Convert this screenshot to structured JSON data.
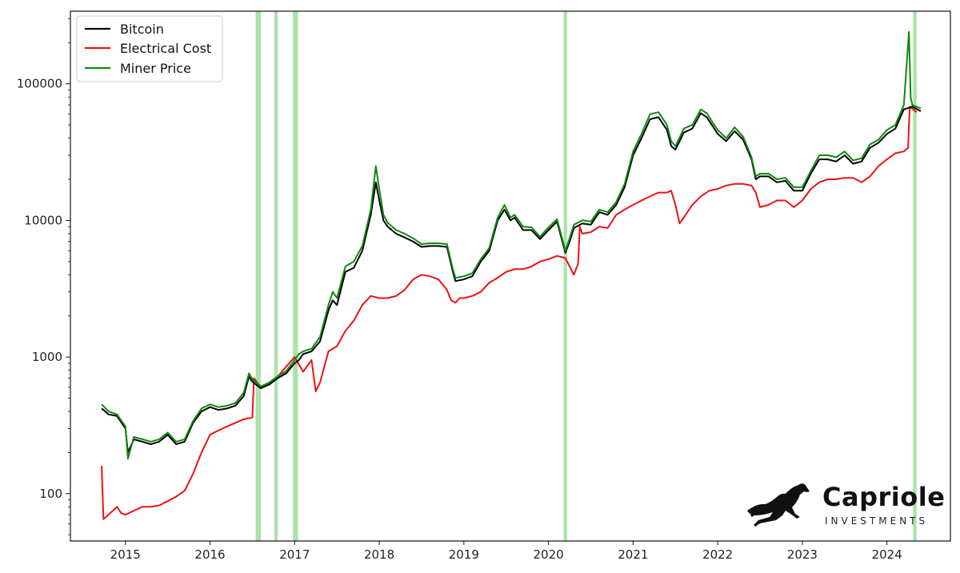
{
  "chart_data": {
    "type": "line",
    "title": "",
    "xlabel": "",
    "ylabel": "",
    "yscale": "log",
    "xlim": [
      2014.35,
      2024.75
    ],
    "ylim": [
      45,
      340000
    ],
    "x_ticks": [
      2015,
      2016,
      2017,
      2018,
      2019,
      2020,
      2021,
      2022,
      2023,
      2024
    ],
    "x_tick_labels": [
      "2015",
      "2016",
      "2017",
      "2018",
      "2019",
      "2020",
      "2021",
      "2022",
      "2023",
      "2024"
    ],
    "y_ticks": [
      100,
      1000,
      10000,
      100000
    ],
    "y_tick_labels": [
      "100",
      "1000",
      "10000",
      "100000"
    ],
    "grid": false,
    "legend_position": "top-left",
    "legend": [
      "Bitcoin",
      "Electrical Cost",
      "Miner Price"
    ],
    "colors": {
      "bitcoin": "#000000",
      "electrical": "#ee1111",
      "miner": "#118811",
      "band": "#8fd88a"
    },
    "highlight_bands": [
      [
        2016.54,
        2016.6
      ],
      [
        2016.76,
        2016.8
      ],
      [
        2016.98,
        2017.04
      ],
      [
        2020.18,
        2020.22
      ],
      [
        2024.31,
        2024.35
      ]
    ],
    "series": [
      {
        "name": "Bitcoin",
        "color": "#000000",
        "x": [
          2014.72,
          2014.8,
          2014.9,
          2015.0,
          2015.03,
          2015.1,
          2015.2,
          2015.3,
          2015.4,
          2015.5,
          2015.6,
          2015.7,
          2015.8,
          2015.9,
          2016.0,
          2016.1,
          2016.2,
          2016.3,
          2016.4,
          2016.46,
          2016.5,
          2016.6,
          2016.7,
          2016.8,
          2016.9,
          2017.0,
          2017.05,
          2017.1,
          2017.2,
          2017.3,
          2017.4,
          2017.45,
          2017.5,
          2017.6,
          2017.7,
          2017.8,
          2017.9,
          2017.96,
          2018.0,
          2018.05,
          2018.1,
          2018.2,
          2018.3,
          2018.4,
          2018.5,
          2018.6,
          2018.7,
          2018.8,
          2018.87,
          2018.9,
          2019.0,
          2019.1,
          2019.2,
          2019.3,
          2019.4,
          2019.48,
          2019.55,
          2019.6,
          2019.7,
          2019.8,
          2019.9,
          2020.0,
          2020.1,
          2020.2,
          2020.25,
          2020.3,
          2020.4,
          2020.5,
          2020.6,
          2020.7,
          2020.8,
          2020.9,
          2021.0,
          2021.1,
          2021.2,
          2021.3,
          2021.4,
          2021.45,
          2021.5,
          2021.6,
          2021.7,
          2021.8,
          2021.87,
          2021.95,
          2022.0,
          2022.1,
          2022.2,
          2022.3,
          2022.4,
          2022.45,
          2022.5,
          2022.6,
          2022.7,
          2022.8,
          2022.9,
          2023.0,
          2023.1,
          2023.2,
          2023.3,
          2023.4,
          2023.5,
          2023.6,
          2023.7,
          2023.8,
          2023.9,
          2024.0,
          2024.1,
          2024.2,
          2024.3,
          2024.4
        ],
        "values": [
          420,
          380,
          370,
          300,
          200,
          250,
          240,
          230,
          240,
          270,
          230,
          240,
          330,
          400,
          430,
          410,
          420,
          440,
          520,
          720,
          660,
          590,
          630,
          700,
          760,
          900,
          950,
          1050,
          1100,
          1300,
          2200,
          2600,
          2400,
          4200,
          4500,
          6000,
          11000,
          19000,
          14000,
          10000,
          9000,
          8000,
          7500,
          7000,
          6400,
          6500,
          6500,
          6400,
          4200,
          3600,
          3700,
          3900,
          5000,
          6000,
          10000,
          12000,
          10000,
          10500,
          8500,
          8500,
          7300,
          8500,
          9800,
          5800,
          7000,
          8800,
          9500,
          9300,
          11500,
          11000,
          13000,
          17500,
          30000,
          40000,
          55000,
          57000,
          46000,
          35000,
          33000,
          44000,
          47000,
          61000,
          57000,
          48000,
          43000,
          38000,
          45000,
          39000,
          28000,
          20000,
          21000,
          21000,
          19000,
          19500,
          16500,
          16500,
          22000,
          28000,
          28000,
          27000,
          30000,
          26000,
          27000,
          34000,
          37000,
          43000,
          47000,
          65000,
          68000,
          63000
        ]
      },
      {
        "name": "Electrical Cost",
        "color": "#ee1111",
        "x": [
          2014.72,
          2014.74,
          2014.8,
          2014.9,
          2014.95,
          2015.0,
          2015.1,
          2015.2,
          2015.3,
          2015.4,
          2015.5,
          2015.6,
          2015.7,
          2015.8,
          2015.9,
          2016.0,
          2016.1,
          2016.2,
          2016.3,
          2016.4,
          2016.5,
          2016.52,
          2016.6,
          2016.7,
          2016.8,
          2016.9,
          2017.0,
          2017.1,
          2017.2,
          2017.25,
          2017.3,
          2017.4,
          2017.5,
          2017.6,
          2017.7,
          2017.8,
          2017.9,
          2018.0,
          2018.1,
          2018.2,
          2018.3,
          2018.4,
          2018.5,
          2018.6,
          2018.7,
          2018.8,
          2018.85,
          2018.9,
          2018.95,
          2019.0,
          2019.1,
          2019.2,
          2019.3,
          2019.4,
          2019.5,
          2019.6,
          2019.7,
          2019.8,
          2019.9,
          2020.0,
          2020.1,
          2020.2,
          2020.3,
          2020.35,
          2020.37,
          2020.4,
          2020.5,
          2020.6,
          2020.7,
          2020.8,
          2020.9,
          2021.0,
          2021.1,
          2021.2,
          2021.3,
          2021.4,
          2021.45,
          2021.5,
          2021.55,
          2021.6,
          2021.7,
          2021.8,
          2021.9,
          2022.0,
          2022.1,
          2022.2,
          2022.3,
          2022.4,
          2022.45,
          2022.5,
          2022.6,
          2022.7,
          2022.8,
          2022.9,
          2023.0,
          2023.1,
          2023.2,
          2023.3,
          2023.4,
          2023.5,
          2023.6,
          2023.7,
          2023.8,
          2023.9,
          2024.0,
          2024.1,
          2024.2,
          2024.25,
          2024.27,
          2024.35
        ],
        "values": [
          160,
          65,
          70,
          80,
          72,
          70,
          75,
          80,
          80,
          82,
          88,
          95,
          105,
          140,
          200,
          270,
          290,
          310,
          330,
          350,
          360,
          700,
          600,
          650,
          720,
          850,
          1000,
          780,
          950,
          560,
          650,
          1100,
          1200,
          1550,
          1850,
          2400,
          2800,
          2700,
          2700,
          2800,
          3100,
          3700,
          4000,
          3900,
          3700,
          3100,
          2600,
          2500,
          2700,
          2700,
          2800,
          3000,
          3500,
          3800,
          4200,
          4400,
          4400,
          4600,
          5000,
          5200,
          5500,
          5300,
          4000,
          4800,
          9000,
          8000,
          8200,
          9000,
          8800,
          11000,
          12000,
          13000,
          14000,
          15000,
          16000,
          16000,
          16500,
          13000,
          9500,
          10500,
          13000,
          15000,
          16500,
          17000,
          18000,
          18500,
          18500,
          18000,
          16000,
          12500,
          13000,
          14000,
          14000,
          12500,
          14000,
          17000,
          19000,
          20000,
          20000,
          20500,
          20500,
          19000,
          21000,
          25000,
          28000,
          31000,
          32000,
          34000,
          68000,
          62000
        ]
      },
      {
        "name": "Miner Price",
        "color": "#118811",
        "x": [
          2014.72,
          2014.8,
          2014.9,
          2015.0,
          2015.03,
          2015.1,
          2015.2,
          2015.3,
          2015.4,
          2015.5,
          2015.6,
          2015.7,
          2015.8,
          2015.9,
          2016.0,
          2016.1,
          2016.2,
          2016.3,
          2016.4,
          2016.46,
          2016.5,
          2016.6,
          2016.7,
          2016.8,
          2016.9,
          2017.0,
          2017.05,
          2017.1,
          2017.2,
          2017.3,
          2017.4,
          2017.45,
          2017.5,
          2017.6,
          2017.7,
          2017.8,
          2017.9,
          2017.96,
          2018.0,
          2018.05,
          2018.1,
          2018.2,
          2018.3,
          2018.4,
          2018.5,
          2018.6,
          2018.7,
          2018.8,
          2018.87,
          2018.9,
          2019.0,
          2019.1,
          2019.2,
          2019.3,
          2019.4,
          2019.48,
          2019.55,
          2019.6,
          2019.7,
          2019.8,
          2019.9,
          2020.0,
          2020.1,
          2020.2,
          2020.25,
          2020.3,
          2020.4,
          2020.5,
          2020.6,
          2020.7,
          2020.8,
          2020.9,
          2021.0,
          2021.1,
          2021.2,
          2021.3,
          2021.4,
          2021.45,
          2021.5,
          2021.6,
          2021.7,
          2021.8,
          2021.87,
          2021.95,
          2022.0,
          2022.1,
          2022.2,
          2022.3,
          2022.4,
          2022.45,
          2022.5,
          2022.6,
          2022.7,
          2022.8,
          2022.9,
          2023.0,
          2023.1,
          2023.2,
          2023.3,
          2023.4,
          2023.5,
          2023.6,
          2023.7,
          2023.8,
          2023.9,
          2024.0,
          2024.1,
          2024.2,
          2024.26,
          2024.28,
          2024.3,
          2024.4
        ],
        "values": [
          450,
          400,
          380,
          310,
          180,
          260,
          250,
          240,
          250,
          280,
          240,
          250,
          340,
          420,
          450,
          430,
          440,
          460,
          550,
          760,
          690,
          610,
          650,
          720,
          790,
          950,
          1050,
          1100,
          1150,
          1400,
          2400,
          3000,
          2700,
          4600,
          5000,
          6500,
          12000,
          25000,
          17000,
          11000,
          9600,
          8500,
          8000,
          7400,
          6700,
          6800,
          6800,
          6700,
          4400,
          3800,
          3900,
          4100,
          5200,
          6300,
          10500,
          13000,
          10500,
          11000,
          9000,
          8900,
          7600,
          8900,
          10200,
          6000,
          7400,
          9300,
          10000,
          9800,
          12000,
          11500,
          13600,
          18500,
          32000,
          43000,
          60000,
          62000,
          50000,
          38000,
          35000,
          47000,
          50000,
          65000,
          61000,
          51000,
          46000,
          40000,
          48000,
          41000,
          29000,
          21000,
          22000,
          22000,
          20000,
          20500,
          17500,
          17500,
          23000,
          30000,
          30000,
          29000,
          32000,
          27500,
          28500,
          36000,
          39000,
          46000,
          50000,
          70000,
          240000,
          80000,
          70000,
          66000
        ]
      }
    ]
  },
  "logo": {
    "title": "Capriole",
    "subtitle": "INVESTMENTS",
    "icon": "horse-icon"
  }
}
